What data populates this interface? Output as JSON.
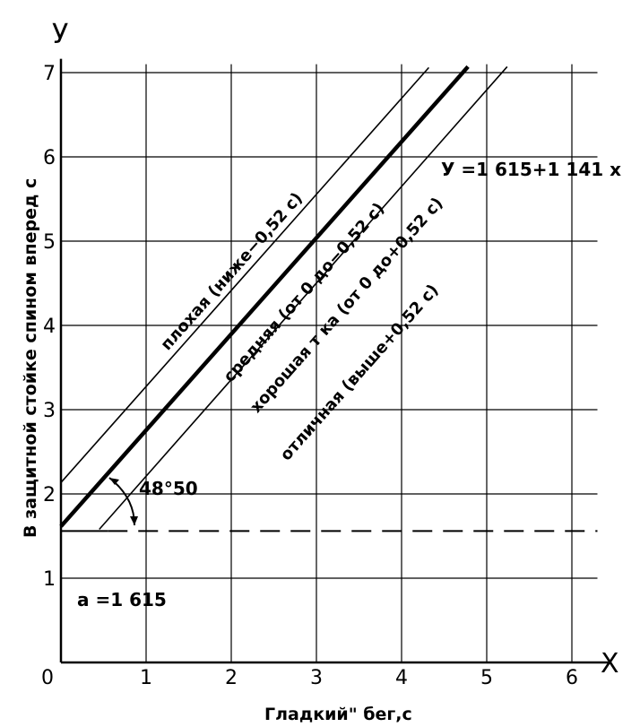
{
  "chart_data": {
    "type": "line",
    "xlabel": "Гладкий\" бег,с",
    "ylabel": "В защитной стойке спином вперед с",
    "x_axis_letter": "X",
    "y_axis_letter": "У",
    "xlim": [
      0,
      6.3
    ],
    "ylim": [
      0,
      7.1
    ],
    "x_ticks": [
      "0",
      "1",
      "2",
      "3",
      "4",
      "5",
      "6"
    ],
    "y_ticks": [
      "1",
      "2",
      "3",
      "4",
      "5",
      "6",
      "7"
    ],
    "grid": true,
    "regression": {
      "intercept": 1.615,
      "slope": 1.141
    },
    "offset": 0.52,
    "series": [
      {
        "name": "",
        "kind": "band-edge",
        "x": [
          0,
          4.32
        ],
        "y": [
          2.135,
          7.06
        ]
      },
      {
        "name": "",
        "kind": "regression",
        "x": [
          0,
          4.78
        ],
        "y": [
          1.615,
          7.07
        ]
      },
      {
        "name": "",
        "kind": "band-edge",
        "x": [
          0.45,
          5.24
        ],
        "y": [
          1.58,
          7.07
        ]
      },
      {
        "name": "",
        "kind": "baseline",
        "x": [
          0,
          6.3
        ],
        "y": [
          1.56,
          1.56
        ]
      }
    ],
    "equation_label": "У =1 615+1 141 x",
    "intercept_label": "a =1 615",
    "angle_label": "48°50",
    "band_labels": [
      {
        "text": "плохая (ниже−0,52 с)",
        "x": 2.05,
        "y": 4.6
      },
      {
        "text": "средняя (от 0 до−0,52 с)",
        "x": 2.9,
        "y": 4.35
      },
      {
        "text": "хорошая т ка (от 0 до+0,52 с)",
        "x": 3.4,
        "y": 4.2
      },
      {
        "text": "отличная (выше+0,52 с)",
        "x": 3.55,
        "y": 3.4
      }
    ]
  }
}
